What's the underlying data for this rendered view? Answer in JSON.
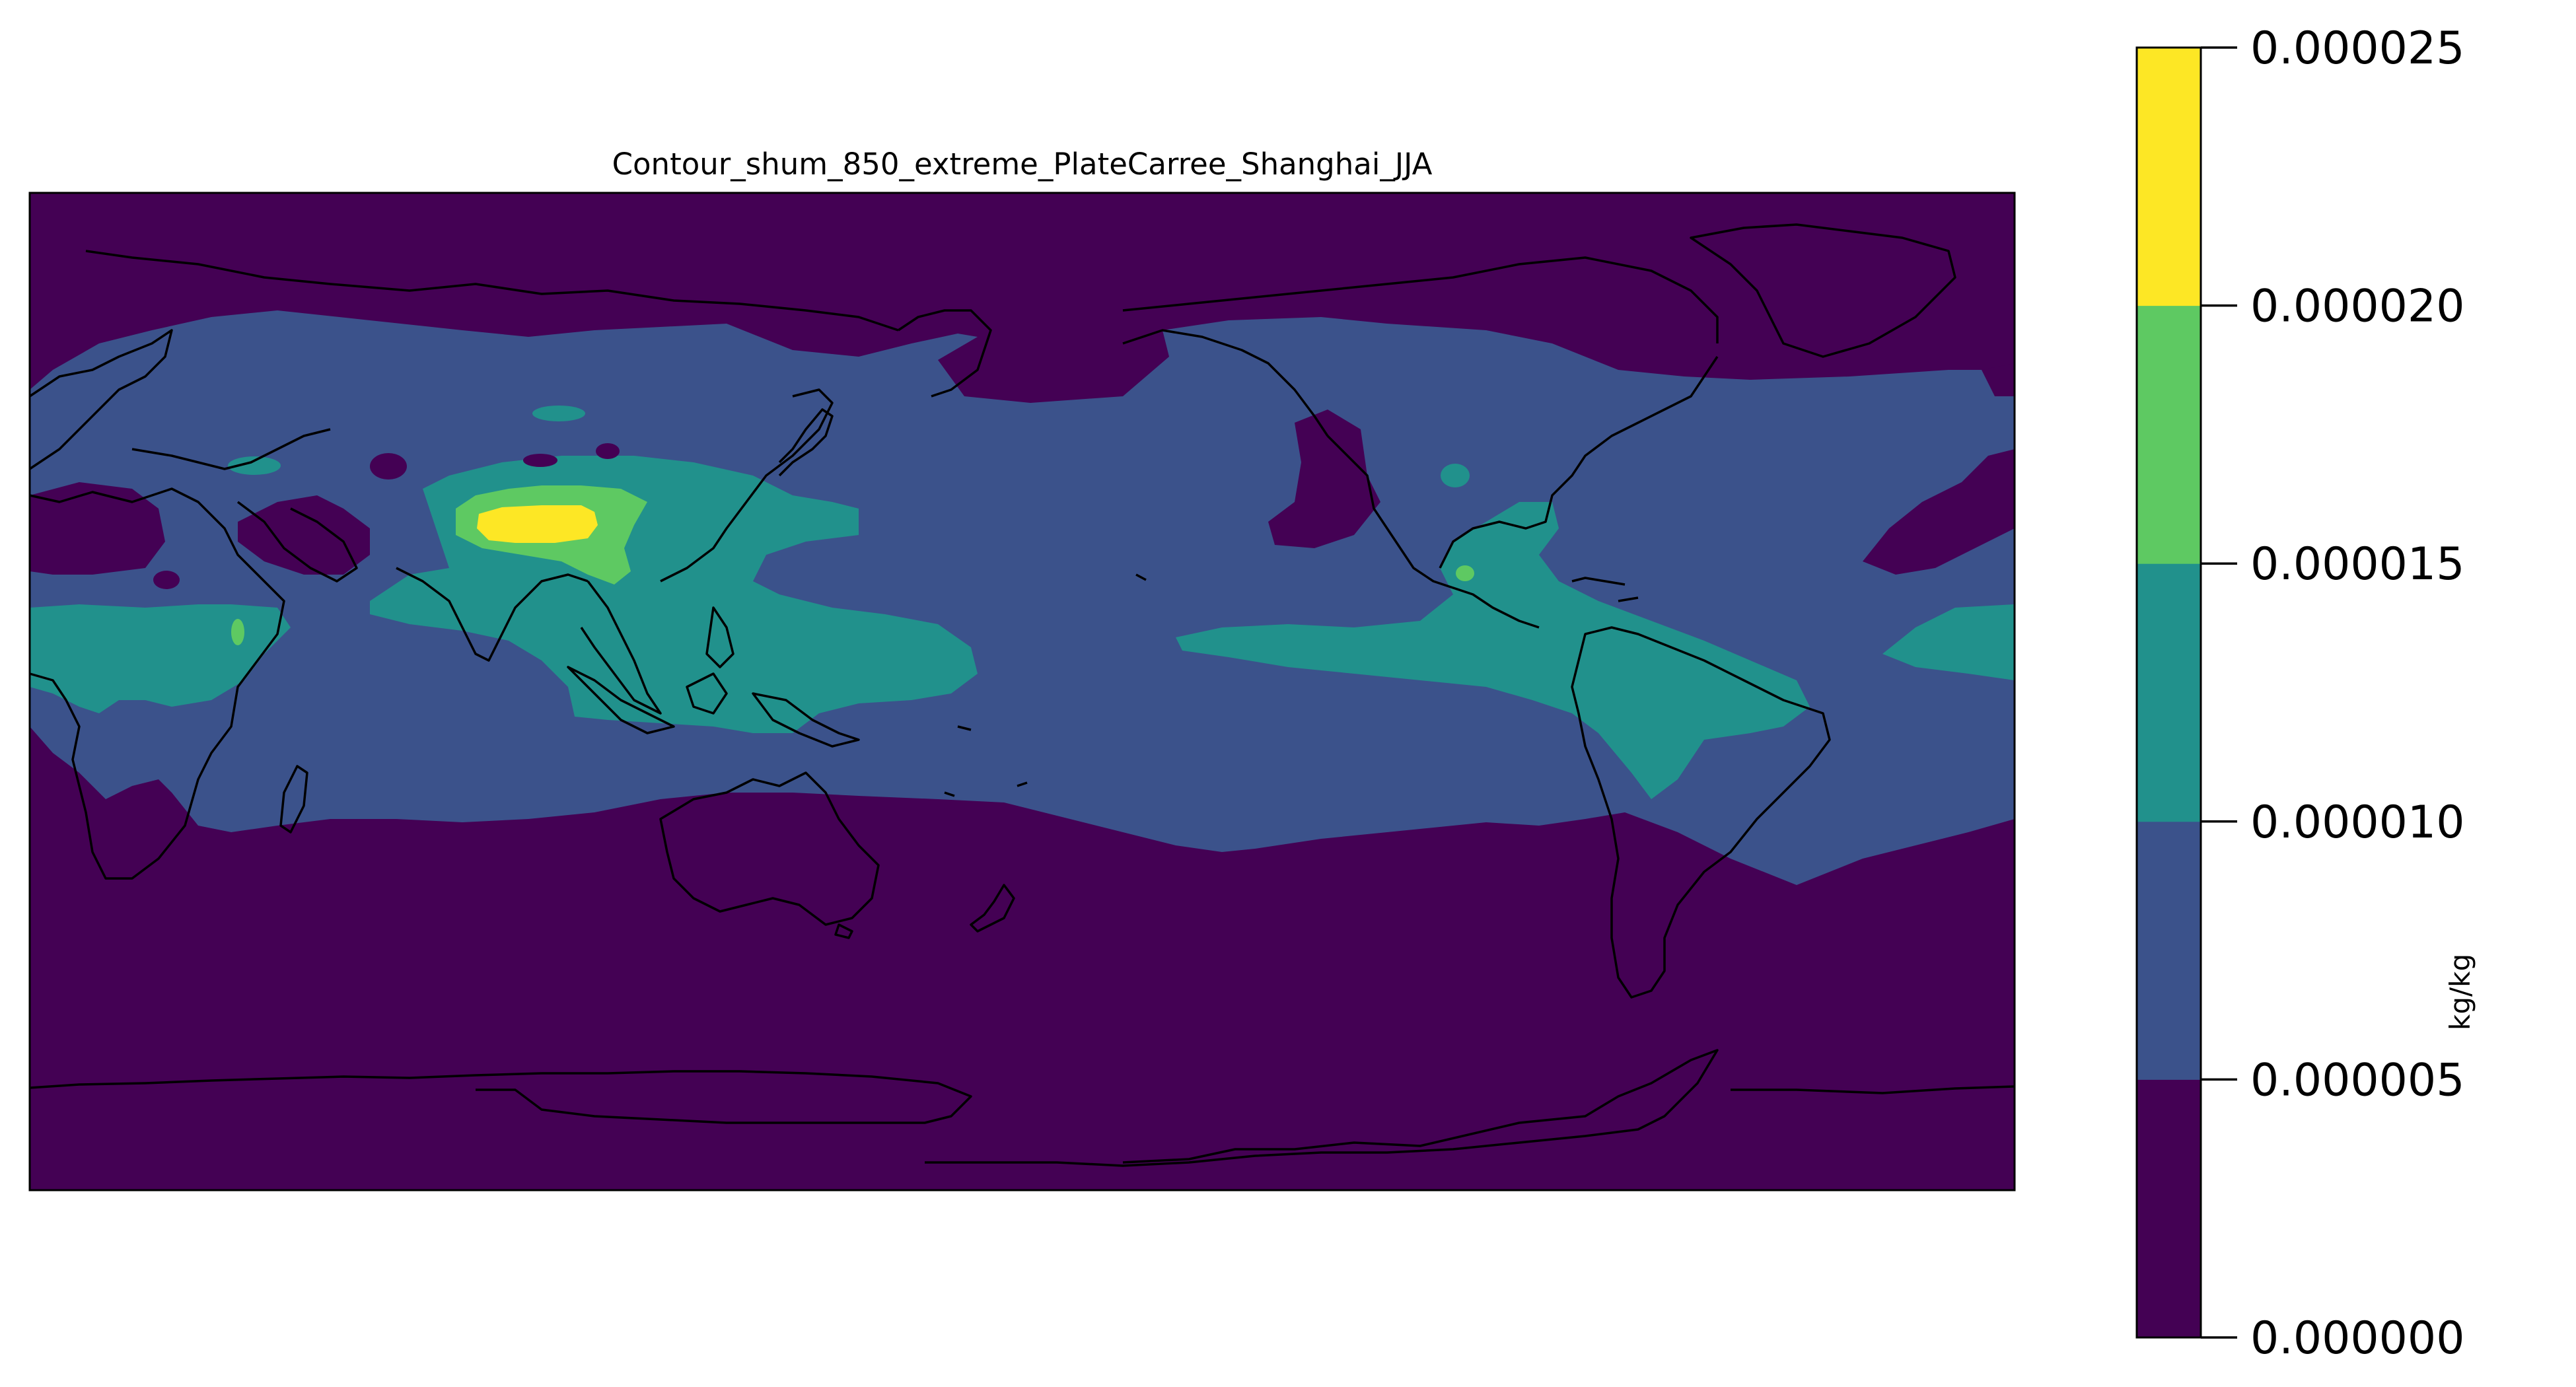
{
  "figure": {
    "title": "Contour_shum_850_extreme_PlateCarree_Shanghai_JJA"
  },
  "map": {
    "projection": "PlateCarree",
    "central_longitude": 180,
    "extent": {
      "lon": [
        0,
        360
      ],
      "lat": [
        -90,
        90
      ]
    },
    "fill_colors": [
      "#440154",
      "#3b528b",
      "#21918c",
      "#5ec962",
      "#fde725"
    ]
  },
  "colorbar": {
    "label": "kg/kg",
    "levels": [
      0,
      5e-06,
      1e-05,
      1.5e-05,
      2e-05,
      2.5e-05
    ],
    "tick_labels": [
      "0.000000",
      "0.000005",
      "0.000010",
      "0.000015",
      "0.000020",
      "0.000025"
    ],
    "colors": [
      "#440154",
      "#3b528b",
      "#21918c",
      "#5ec962",
      "#fde725"
    ]
  },
  "chart_data": {
    "type": "heatmap",
    "title": "Contour_shum_850_extreme_PlateCarree_Shanghai_JJA",
    "colorbar_label": "kg/kg",
    "levels": [
      0,
      5e-06,
      1e-05,
      1.5e-05,
      2e-05,
      2.5e-05
    ],
    "grid": false
  }
}
